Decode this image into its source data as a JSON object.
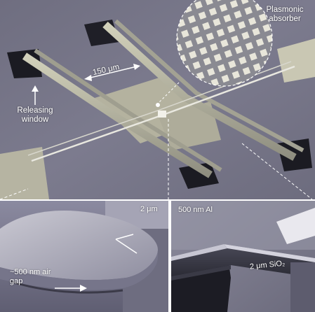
{
  "figure": {
    "panel_top": {
      "plasmonic_label": "Plasmonic absorber",
      "scale_label": "150 μm",
      "window_label": "Releasing window"
    },
    "panel_bottom_left": {
      "thickness_label": "2 μm",
      "gap_label": "~500 nm air gap"
    },
    "panel_bottom_right": {
      "al_label": "500 nm Al",
      "sio2_label": "2 μm SiO₂"
    }
  }
}
